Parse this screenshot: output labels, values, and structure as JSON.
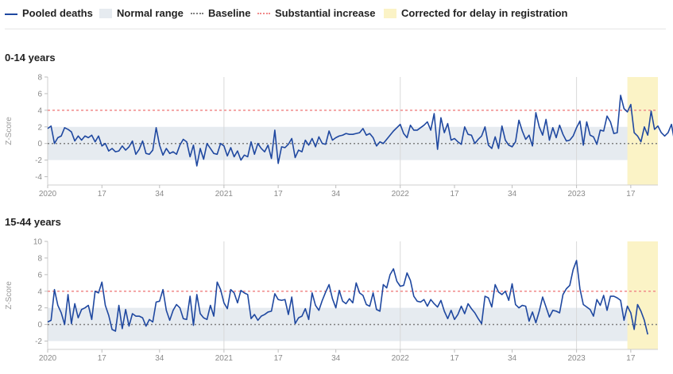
{
  "legend": {
    "items": [
      {
        "key": "line",
        "label": "Pooled deaths"
      },
      {
        "key": "box",
        "label": "Normal range"
      },
      {
        "key": "base",
        "label": "Baseline"
      },
      {
        "key": "subst",
        "label": "Substantial increase"
      },
      {
        "key": "delay",
        "label": "Corrected for delay in registration"
      }
    ]
  },
  "colors": {
    "line": "#1f48a0",
    "normal_range": "#e6ebf0",
    "baseline": "#808080",
    "substantial": "#f08a8a",
    "delay": "#fbf3c6",
    "gridline": "#d9d9d9"
  },
  "chart_data": [
    {
      "type": "line",
      "title": "0-14 years",
      "ylabel": "Z-Score",
      "ylim": [
        -5,
        8
      ],
      "yticks": [
        -4,
        -2,
        0,
        2,
        4,
        6,
        8
      ],
      "normal_range": [
        -2,
        2
      ],
      "baseline": 0,
      "substantial_increase": 4,
      "x_tick_labels": [
        "2020",
        "17",
        "34",
        "2021",
        "17",
        "34",
        "2022",
        "17",
        "34",
        "2023",
        "17"
      ],
      "x_tick_index": [
        0,
        16,
        33,
        52,
        68,
        85,
        104,
        120,
        137,
        156,
        172
      ],
      "x_gridline_index": [
        52,
        104,
        156
      ],
      "delay_start_index": 171,
      "series": [
        {
          "values": [
            1.8,
            2.1,
            0.0,
            0.7,
            0.9,
            1.9,
            1.7,
            1.4,
            0.3,
            0.9,
            0.4,
            0.9,
            0.7,
            1.0,
            0.2,
            0.9,
            -0.3,
            0.0,
            -0.9,
            -0.6,
            -1.0,
            -0.9,
            -0.3,
            -0.8,
            -0.4,
            0.3,
            -1.3,
            -0.7,
            0.3,
            -1.2,
            -1.3,
            -0.8,
            1.9,
            -0.2,
            -1.4,
            -0.6,
            -1.2,
            -1.0,
            -1.3,
            -0.2,
            0.5,
            0.2,
            -1.6,
            -0.2,
            -2.7,
            -0.6,
            -1.9,
            0.0,
            -0.6,
            -1.2,
            -1.3,
            0.0,
            -0.3,
            -1.5,
            -0.5,
            -1.6,
            -0.9,
            -2.0,
            -1.4,
            -1.6,
            0.2,
            -1.3,
            0.0,
            -0.6,
            -1.0,
            -0.2,
            -1.8,
            1.6,
            -2.4,
            -0.4,
            -0.5,
            -0.1,
            0.6,
            -1.7,
            -0.8,
            -1.0,
            0.4,
            -0.2,
            0.6,
            -0.4,
            0.8,
            0.0,
            -0.1,
            1.5,
            0.4,
            0.7,
            0.9,
            1.0,
            1.2,
            1.1,
            1.1,
            1.2,
            1.3,
            1.8,
            1.0,
            1.2,
            0.7,
            -0.3,
            0.2,
            0.0,
            0.5,
            1.0,
            1.5,
            1.9,
            2.3,
            1.2,
            0.7,
            2.2,
            1.6,
            1.6,
            1.9,
            2.2,
            2.6,
            1.6,
            3.6,
            -0.7,
            3.1,
            1.3,
            2.4,
            0.4,
            0.6,
            0.2,
            -0.1,
            2.0,
            1.1,
            1.0,
            0.0,
            0.5,
            0.9,
            2.0,
            -0.2,
            -0.6,
            0.8,
            -0.6,
            2.1,
            0.4,
            -0.2,
            -0.4,
            0.2,
            2.8,
            1.5,
            0.5,
            1.0,
            -0.3,
            3.7,
            2.0,
            1.0,
            2.9,
            0.4,
            1.9,
            0.7,
            2.2,
            1.1,
            0.3,
            0.4,
            0.9,
            1.9,
            2.7,
            -0.2,
            2.6,
            1.0,
            0.8,
            -0.1,
            1.6,
            1.5,
            3.3,
            2.6,
            1.2,
            1.3,
            5.8,
            4.2,
            3.8,
            4.7,
            1.3,
            0.9,
            0.2,
            2.0,
            1.0,
            3.9,
            1.7,
            2.1,
            1.3,
            0.9,
            1.3,
            2.3,
            0.0,
            1.1,
            1.4,
            0.8,
            1.7,
            1.1,
            -0.3,
            -0.9,
            1.1,
            -0.4
          ]
        }
      ]
    },
    {
      "type": "line",
      "title": "15-44 years",
      "ylabel": "Z-Score",
      "ylim": [
        -3,
        10
      ],
      "yticks": [
        -2,
        0,
        2,
        4,
        6,
        8,
        10
      ],
      "normal_range": [
        -2,
        2
      ],
      "baseline": 0,
      "substantial_increase": 4,
      "x_tick_labels": [
        "2020",
        "17",
        "34",
        "2021",
        "17",
        "34",
        "2022",
        "17",
        "34",
        "2023",
        "17"
      ],
      "x_tick_index": [
        0,
        16,
        33,
        52,
        68,
        85,
        104,
        120,
        137,
        156,
        172
      ],
      "x_gridline_index": [
        52,
        104,
        156
      ],
      "delay_start_index": 171,
      "series": [
        {
          "values": [
            0.3,
            0.5,
            4.2,
            2.3,
            1.4,
            0.0,
            3.6,
            0.1,
            2.5,
            0.8,
            1.8,
            2.0,
            2.3,
            0.6,
            4.0,
            3.8,
            5.1,
            2.3,
            1.1,
            -0.6,
            -0.8,
            2.3,
            -0.5,
            1.8,
            -0.2,
            1.3,
            1.0,
            1.0,
            0.8,
            -0.2,
            0.6,
            0.3,
            2.7,
            2.8,
            4.2,
            1.7,
            0.5,
            1.7,
            2.4,
            2.0,
            0.7,
            0.6,
            3.4,
            -0.1,
            3.6,
            1.3,
            0.8,
            0.6,
            2.3,
            1.0,
            5.1,
            4.2,
            2.6,
            1.9,
            4.2,
            3.8,
            2.6,
            4.1,
            3.8,
            3.6,
            0.7,
            1.2,
            0.5,
            1.0,
            1.2,
            1.5,
            1.6,
            3.7,
            3.0,
            2.9,
            3.0,
            1.2,
            3.3,
            0.1,
            0.8,
            1.0,
            1.9,
            0.6,
            3.8,
            2.3,
            1.7,
            2.9,
            3.9,
            4.8,
            3.1,
            2.0,
            4.1,
            2.8,
            2.5,
            3.1,
            2.6,
            5.0,
            3.8,
            3.5,
            2.4,
            2.2,
            3.8,
            1.8,
            1.6,
            4.8,
            4.4,
            6.0,
            6.7,
            5.2,
            4.6,
            4.7,
            6.2,
            5.3,
            3.4,
            2.8,
            2.7,
            3.0,
            2.2,
            3.0,
            2.5,
            2.1,
            2.9,
            1.6,
            0.7,
            1.7,
            0.6,
            1.2,
            2.2,
            1.3,
            2.5,
            1.9,
            1.4,
            0.7,
            0.1,
            3.4,
            3.2,
            2.1,
            4.8,
            3.9,
            3.6,
            4.0,
            2.9,
            4.9,
            2.4,
            2.0,
            2.3,
            2.2,
            0.4,
            1.5,
            0.2,
            1.6,
            3.3,
            2.1,
            0.9,
            1.7,
            1.6,
            1.4,
            3.6,
            4.3,
            4.7,
            6.6,
            7.7,
            4.3,
            2.4,
            2.1,
            1.8,
            1.0,
            3.0,
            2.3,
            3.5,
            1.7,
            3.4,
            3.4,
            3.2,
            2.9,
            0.5,
            2.2,
            1.4,
            -0.6,
            2.4,
            1.6,
            0.5,
            -1.2
          ]
        }
      ]
    }
  ]
}
